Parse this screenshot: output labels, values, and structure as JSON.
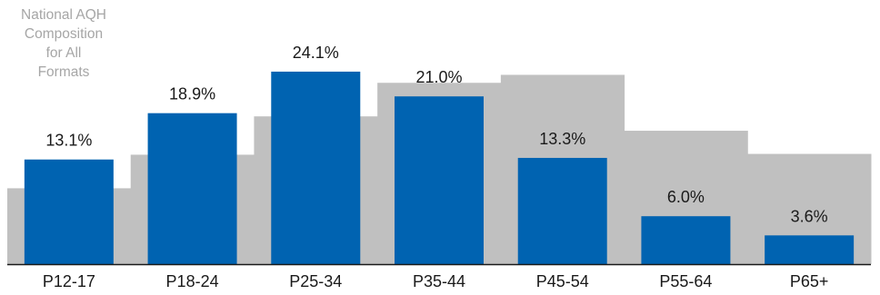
{
  "chart_data": {
    "type": "bar",
    "categories": [
      "P12-17",
      "P18-24",
      "P25-34",
      "P35-44",
      "P45-54",
      "P55-64",
      "P65+"
    ],
    "series": [
      {
        "values": [
          13.1,
          18.9,
          24.1,
          21.0,
          13.3,
          6.0,
          3.6
        ]
      },
      {
        "name": "National AQH Composition for All Formats",
        "values": [
          9.5,
          13.7,
          18.5,
          22.7,
          23.7,
          16.7,
          13.8
        ]
      }
    ],
    "data_labels": [
      "13.1%",
      "18.9%",
      "24.1%",
      "21.0%",
      "13.3%",
      "6.0%",
      "3.6%"
    ],
    "legend_lines": [
      "National AQH",
      "Composition",
      "for All",
      "Formats"
    ],
    "ylim": [
      0,
      28
    ],
    "grid": false,
    "colors": {
      "primary_series": "#0063b1",
      "background_series": "#c0c0c0",
      "axis": "#1a1a1a"
    }
  }
}
